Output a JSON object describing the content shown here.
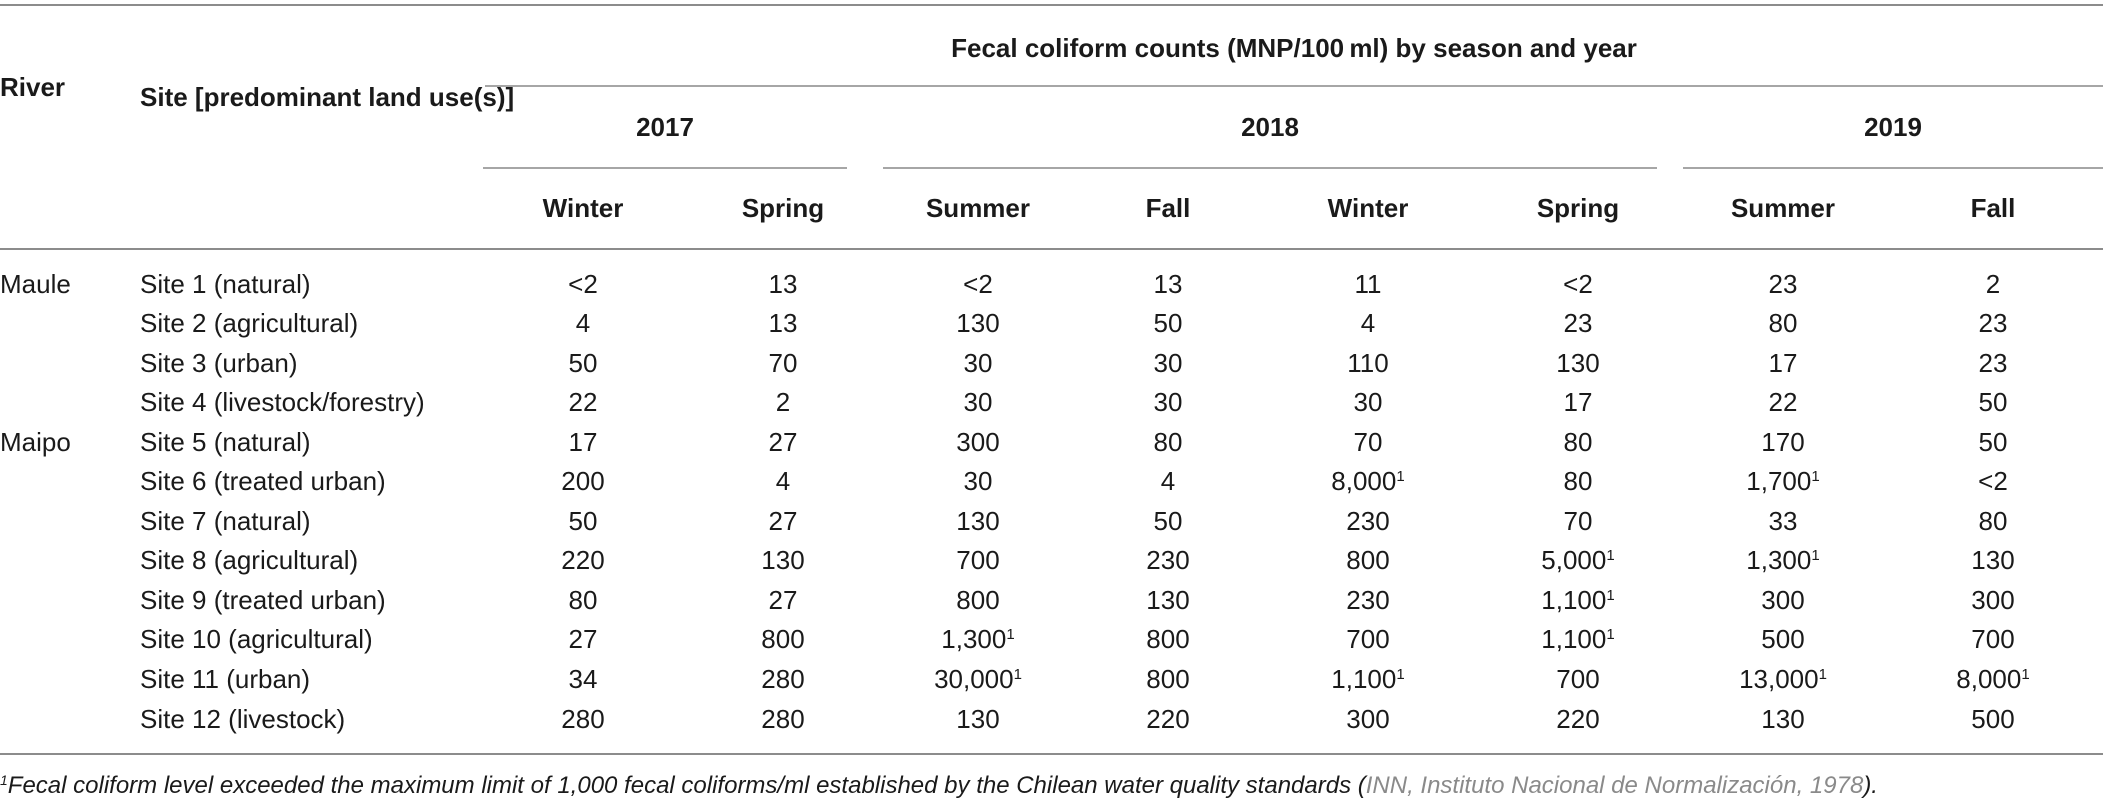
{
  "header": {
    "river_label": "River",
    "site_label": "Site [predominant land use(s)]",
    "group_title": "Fecal coliform counts (MNP/100 ml) by season and year",
    "years": [
      "2017",
      "2018",
      "2019"
    ],
    "seasons": [
      "Winter",
      "Spring",
      "Summer",
      "Fall",
      "Winter",
      "Spring",
      "Summer",
      "Fall"
    ]
  },
  "rows": [
    {
      "river": "Maule",
      "site": "Site 1 (natural)",
      "values": [
        "<2",
        "13",
        "<2",
        "13",
        "11",
        "<2",
        "23",
        "2"
      ],
      "notes": [
        "",
        "",
        "",
        "",
        "",
        "",
        "",
        ""
      ]
    },
    {
      "river": "",
      "site": "Site 2 (agricultural)",
      "values": [
        "4",
        "13",
        "130",
        "50",
        "4",
        "23",
        "80",
        "23"
      ],
      "notes": [
        "",
        "",
        "",
        "",
        "",
        "",
        "",
        ""
      ]
    },
    {
      "river": "",
      "site": "Site 3 (urban)",
      "values": [
        "50",
        "70",
        "30",
        "30",
        "110",
        "130",
        "17",
        "23"
      ],
      "notes": [
        "",
        "",
        "",
        "",
        "",
        "",
        "",
        ""
      ]
    },
    {
      "river": "",
      "site": "Site 4 (livestock/forestry)",
      "values": [
        "22",
        "2",
        "30",
        "30",
        "30",
        "17",
        "22",
        "50"
      ],
      "notes": [
        "",
        "",
        "",
        "",
        "",
        "",
        "",
        ""
      ]
    },
    {
      "river": "Maipo",
      "site": "Site 5 (natural)",
      "values": [
        "17",
        "27",
        "300",
        "80",
        "70",
        "80",
        "170",
        "50"
      ],
      "notes": [
        "",
        "",
        "",
        "",
        "",
        "",
        "",
        ""
      ]
    },
    {
      "river": "",
      "site": "Site 6 (treated urban)",
      "values": [
        "200",
        "4",
        "30",
        "4",
        "8,000",
        "80",
        "1,700",
        "<2"
      ],
      "notes": [
        "",
        "",
        "",
        "",
        "1",
        "",
        "1",
        ""
      ]
    },
    {
      "river": "",
      "site": "Site 7 (natural)",
      "values": [
        "50",
        "27",
        "130",
        "50",
        "230",
        "70",
        "33",
        "80"
      ],
      "notes": [
        "",
        "",
        "",
        "",
        "",
        "",
        "",
        ""
      ]
    },
    {
      "river": "",
      "site": "Site 8 (agricultural)",
      "values": [
        "220",
        "130",
        "700",
        "230",
        "800",
        "5,000",
        "1,300",
        "130"
      ],
      "notes": [
        "",
        "",
        "",
        "",
        "",
        "1",
        "1",
        ""
      ]
    },
    {
      "river": "",
      "site": "Site 9 (treated urban)",
      "values": [
        "80",
        "27",
        "800",
        "130",
        "230",
        "1,100",
        "300",
        "300"
      ],
      "notes": [
        "",
        "",
        "",
        "",
        "",
        "1",
        "",
        ""
      ]
    },
    {
      "river": "",
      "site": "Site 10 (agricultural)",
      "values": [
        "27",
        "800",
        "1,300",
        "800",
        "700",
        "1,100",
        "500",
        "700"
      ],
      "notes": [
        "",
        "",
        "1",
        "",
        "",
        "1",
        "",
        ""
      ]
    },
    {
      "river": "",
      "site": "Site 11 (urban)",
      "values": [
        "34",
        "280",
        "30,000",
        "800",
        "1,100",
        "700",
        "13,000",
        "8,000"
      ],
      "notes": [
        "",
        "",
        "1",
        "",
        "1",
        "",
        "1",
        "1"
      ]
    },
    {
      "river": "",
      "site": "Site 12 (livestock)",
      "values": [
        "280",
        "280",
        "130",
        "220",
        "300",
        "220",
        "130",
        "500"
      ],
      "notes": [
        "",
        "",
        "",
        "",
        "",
        "",
        "",
        ""
      ]
    }
  ],
  "footnote": {
    "marker": "1",
    "text": "Fecal coliform level exceeded the maximum limit of 1,000 fecal coliforms/ml established by the Chilean water quality standards (",
    "reference": "INN, Instituto Nacional de Normalización, 1978",
    "suffix": ")."
  }
}
